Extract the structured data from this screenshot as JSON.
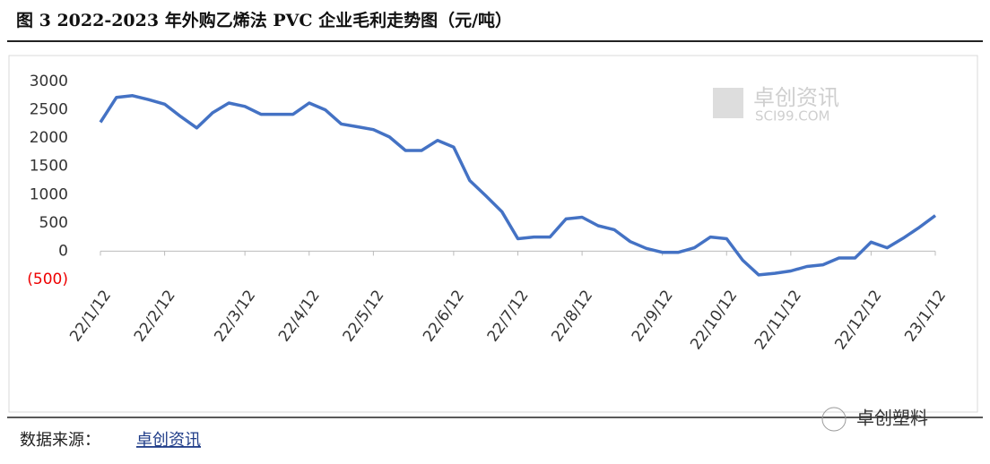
{
  "chart_data": {
    "type": "line",
    "title": "图 3  2022-2023 年外购乙烯法 PVC 企业毛利走势图（元/吨）",
    "categories": [
      "22/1/12",
      null,
      null,
      null,
      "22/2/12",
      null,
      null,
      null,
      null,
      "22/3/12",
      null,
      null,
      null,
      "22/4/12",
      null,
      null,
      null,
      "22/5/12",
      null,
      null,
      null,
      null,
      "22/6/12",
      null,
      null,
      null,
      "22/7/12",
      null,
      null,
      null,
      "22/8/12",
      null,
      null,
      null,
      null,
      "22/9/12",
      null,
      null,
      null,
      "22/10/12",
      null,
      null,
      null,
      "22/11/12",
      null,
      null,
      null,
      null,
      "22/12/12",
      null,
      null,
      null,
      "23/1/12"
    ],
    "series": [
      {
        "name": "毛利",
        "color": "#4472c4",
        "values": [
          2280,
          2720,
          2750,
          2680,
          2600,
          2380,
          2180,
          2450,
          2620,
          2560,
          2420,
          2420,
          2420,
          2620,
          2500,
          2250,
          2200,
          2150,
          2020,
          1780,
          1780,
          1960,
          1840,
          1250,
          980,
          700,
          220,
          250,
          250,
          570,
          600,
          450,
          380,
          170,
          50,
          -20,
          -20,
          60,
          250,
          220,
          -160,
          -420,
          -390,
          -350,
          -270,
          -240,
          -120,
          -120,
          160,
          60,
          230,
          420,
          630
        ]
      }
    ],
    "ylim": [
      -500,
      3000
    ],
    "yticks": [
      {
        "value": -500,
        "label": "(500)"
      },
      0,
      500,
      1000,
      1500,
      2000,
      2500,
      3000
    ],
    "grid": false,
    "legend": false,
    "watermark": "卓创资讯",
    "watermark_sub": "SCI99.COM",
    "source_label": "数据来源：",
    "source": "卓创资讯",
    "brand": "卓创塑料"
  }
}
